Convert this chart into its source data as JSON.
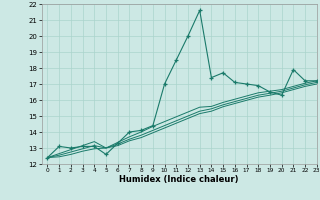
{
  "xlabel": "Humidex (Indice chaleur)",
  "x_data": [
    0,
    1,
    2,
    3,
    4,
    5,
    6,
    7,
    8,
    9,
    10,
    11,
    12,
    13,
    14,
    15,
    16,
    17,
    18,
    19,
    20,
    21,
    22,
    23
  ],
  "y_main": [
    12.4,
    13.1,
    13.0,
    13.1,
    13.1,
    12.6,
    13.3,
    14.0,
    14.1,
    14.4,
    17.0,
    18.5,
    20.0,
    21.6,
    17.4,
    17.7,
    17.1,
    17.0,
    16.9,
    16.5,
    16.3,
    17.9,
    17.2,
    17.2
  ],
  "y_line1": [
    12.4,
    12.65,
    12.9,
    13.15,
    13.4,
    13.0,
    13.35,
    13.7,
    14.0,
    14.35,
    14.65,
    14.95,
    15.25,
    15.55,
    15.6,
    15.85,
    16.05,
    16.25,
    16.45,
    16.55,
    16.65,
    16.85,
    17.05,
    17.2
  ],
  "y_line2": [
    12.4,
    12.55,
    12.75,
    12.95,
    13.15,
    13.0,
    13.25,
    13.55,
    13.8,
    14.1,
    14.4,
    14.7,
    15.0,
    15.3,
    15.45,
    15.7,
    15.9,
    16.1,
    16.3,
    16.42,
    16.55,
    16.75,
    16.95,
    17.1
  ],
  "y_line3": [
    12.4,
    12.45,
    12.6,
    12.8,
    12.95,
    13.0,
    13.15,
    13.45,
    13.65,
    13.95,
    14.25,
    14.55,
    14.85,
    15.15,
    15.3,
    15.58,
    15.78,
    15.98,
    16.18,
    16.3,
    16.45,
    16.65,
    16.85,
    17.0
  ],
  "line_color": "#1a7a6a",
  "bg_color": "#cce8e4",
  "grid_color": "#aad4cc",
  "ylim": [
    12,
    22
  ],
  "xlim": [
    -0.5,
    23
  ],
  "yticks": [
    12,
    13,
    14,
    15,
    16,
    17,
    18,
    19,
    20,
    21,
    22
  ],
  "xticks": [
    0,
    1,
    2,
    3,
    4,
    5,
    6,
    7,
    8,
    9,
    10,
    11,
    12,
    13,
    14,
    15,
    16,
    17,
    18,
    19,
    20,
    21,
    22,
    23
  ]
}
